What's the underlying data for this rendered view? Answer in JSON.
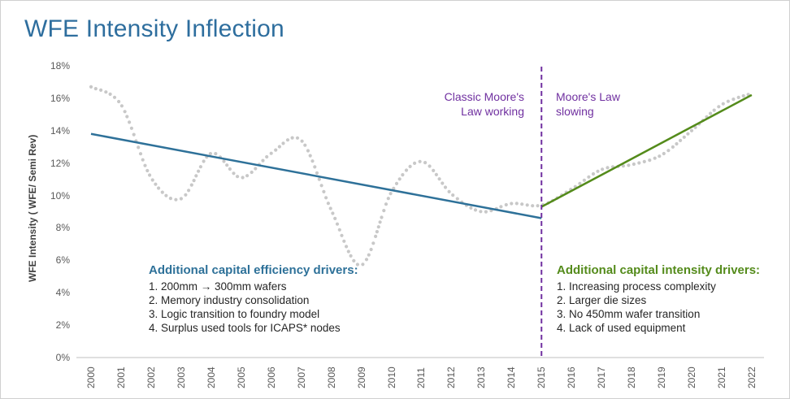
{
  "chart_data": {
    "type": "line",
    "title": "WFE Intensity Inflection",
    "ylabel": "WFE Intensity ( WFE/ Semi Rev)",
    "xlabel": "",
    "ylim": [
      0,
      18
    ],
    "y_ticks": [
      "0%",
      "2%",
      "4%",
      "6%",
      "8%",
      "10%",
      "12%",
      "14%",
      "16%",
      "18%"
    ],
    "x_ticks": [
      "2000",
      "2001",
      "2002",
      "2003",
      "2004",
      "2005",
      "2006",
      "2007",
      "2008",
      "2009",
      "2010",
      "2011",
      "2012",
      "2013",
      "2014",
      "2015",
      "2016",
      "2017",
      "2018",
      "2019",
      "2020",
      "2021",
      "2022"
    ],
    "series": [
      {
        "name": "WFE intensity",
        "style": "dotted",
        "color": "#c8c8c8",
        "x": [
          2000,
          2001,
          2002,
          2003,
          2004,
          2005,
          2006,
          2007,
          2008,
          2009,
          2010,
          2011,
          2012,
          2013,
          2014,
          2015,
          2016,
          2017,
          2018,
          2019,
          2020,
          2021,
          2022
        ],
        "values": [
          16.7,
          15.6,
          11.1,
          9.8,
          12.6,
          11.1,
          12.6,
          13.4,
          9.1,
          5.7,
          10.2,
          12.1,
          10.1,
          9.0,
          9.5,
          9.4,
          10.4,
          11.6,
          11.9,
          12.5,
          14.0,
          15.6,
          16.3
        ]
      },
      {
        "name": "Trend 2000-2015",
        "style": "solid",
        "color": "#2e7199",
        "x": [
          2000,
          2015
        ],
        "values": [
          13.8,
          8.6
        ]
      },
      {
        "name": "Trend 2015-2022",
        "style": "solid",
        "color": "#548b1b",
        "x": [
          2015,
          2022
        ],
        "values": [
          9.3,
          16.2
        ]
      }
    ],
    "divider_x": 2015,
    "annotations": {
      "left_label": [
        "Classic Moore's",
        "Law working"
      ],
      "right_label": [
        "Moore's Law",
        "slowing"
      ]
    }
  },
  "left_drivers": {
    "title": "Additional capital efficiency drivers:",
    "items": [
      "1.  200mm → 300mm wafers",
      "2.  Memory industry consolidation",
      "3.  Logic transition to foundry model",
      "4.  Surplus used tools for ICAPS* nodes"
    ]
  },
  "right_drivers": {
    "title": "Additional capital intensity drivers:",
    "items": [
      "1.  Increasing process complexity",
      "2.  Larger die sizes",
      "3.  No 450mm wafer transition",
      "4.  Lack of used equipment"
    ]
  },
  "colors": {
    "title": "#2e6e9e",
    "left_accent": "#2e7199",
    "right_accent": "#548b1b",
    "divider": "#7030a0",
    "dots": "#c8c8c8"
  }
}
